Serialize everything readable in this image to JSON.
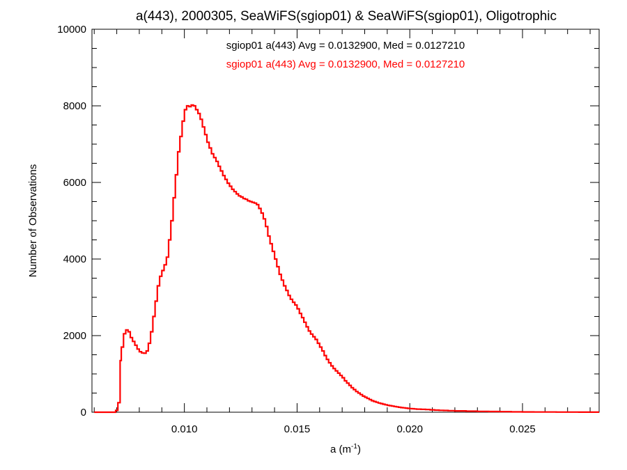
{
  "chart_data": {
    "type": "step-histogram",
    "title": "a(443), 2000305, SeaWiFS(sgiop01) & SeaWiFS(sgiop01), Oligotrophic",
    "xlabel_base": "a (m",
    "xlabel_sup": "-1",
    "xlabel_close": ")",
    "ylabel": "Number of Observations",
    "xlim": [
      0.0059,
      0.0284
    ],
    "ylim": [
      0,
      10000
    ],
    "grid": false,
    "xticks": [
      0.01,
      0.015,
      0.02,
      0.025
    ],
    "xtick_labels": [
      "0.010",
      "0.015",
      "0.020",
      "0.025"
    ],
    "yticks": [
      0,
      2000,
      4000,
      6000,
      8000,
      10000
    ],
    "ytick_labels": [
      "0",
      "2000",
      "4000",
      "6000",
      "8000",
      "10000"
    ],
    "annotations": [
      {
        "text": "sgiop01 a(443) Avg = 0.0132900, Med = 0.0127210",
        "color": "#000000"
      },
      {
        "text": "sgiop01 a(443) Avg = 0.0132900, Med = 0.0127210",
        "color": "#ff0000"
      }
    ],
    "series": [
      {
        "color": "#ff0000",
        "points": [
          [
            0.006,
            0
          ],
          [
            0.0068,
            0
          ],
          [
            0.00695,
            50
          ],
          [
            0.00705,
            250
          ],
          [
            0.00715,
            1350
          ],
          [
            0.0072,
            1700
          ],
          [
            0.0073,
            2050
          ],
          [
            0.0074,
            2150
          ],
          [
            0.0075,
            2100
          ],
          [
            0.0076,
            1950
          ],
          [
            0.0077,
            1850
          ],
          [
            0.0078,
            1750
          ],
          [
            0.0079,
            1650
          ],
          [
            0.008,
            1580
          ],
          [
            0.0081,
            1550
          ],
          [
            0.0082,
            1540
          ],
          [
            0.0083,
            1600
          ],
          [
            0.0084,
            1800
          ],
          [
            0.0085,
            2100
          ],
          [
            0.0086,
            2500
          ],
          [
            0.0087,
            2900
          ],
          [
            0.0088,
            3300
          ],
          [
            0.0089,
            3550
          ],
          [
            0.009,
            3700
          ],
          [
            0.0091,
            3850
          ],
          [
            0.0092,
            4050
          ],
          [
            0.0093,
            4500
          ],
          [
            0.0094,
            5000
          ],
          [
            0.0095,
            5600
          ],
          [
            0.0096,
            6200
          ],
          [
            0.0097,
            6800
          ],
          [
            0.0098,
            7200
          ],
          [
            0.0099,
            7600
          ],
          [
            0.01,
            7900
          ],
          [
            0.0101,
            8000
          ],
          [
            0.0102,
            7980
          ],
          [
            0.0103,
            8020
          ],
          [
            0.0104,
            8000
          ],
          [
            0.0105,
            7900
          ],
          [
            0.0106,
            7800
          ],
          [
            0.0107,
            7650
          ],
          [
            0.0108,
            7450
          ],
          [
            0.0109,
            7250
          ],
          [
            0.011,
            7050
          ],
          [
            0.0111,
            6900
          ],
          [
            0.0112,
            6750
          ],
          [
            0.0113,
            6650
          ],
          [
            0.0114,
            6550
          ],
          [
            0.0115,
            6420
          ],
          [
            0.0116,
            6300
          ],
          [
            0.0117,
            6180
          ],
          [
            0.0118,
            6080
          ],
          [
            0.0119,
            5980
          ],
          [
            0.012,
            5900
          ],
          [
            0.0121,
            5820
          ],
          [
            0.0122,
            5760
          ],
          [
            0.0123,
            5700
          ],
          [
            0.0124,
            5650
          ],
          [
            0.0125,
            5620
          ],
          [
            0.0126,
            5580
          ],
          [
            0.0127,
            5560
          ],
          [
            0.0128,
            5520
          ],
          [
            0.0129,
            5500
          ],
          [
            0.013,
            5480
          ],
          [
            0.0131,
            5460
          ],
          [
            0.0132,
            5420
          ],
          [
            0.0133,
            5320
          ],
          [
            0.0134,
            5200
          ],
          [
            0.0135,
            5050
          ],
          [
            0.0136,
            4850
          ],
          [
            0.0137,
            4600
          ],
          [
            0.0138,
            4400
          ],
          [
            0.0139,
            4200
          ],
          [
            0.014,
            4000
          ],
          [
            0.0141,
            3800
          ],
          [
            0.0142,
            3600
          ],
          [
            0.0143,
            3450
          ],
          [
            0.0144,
            3300
          ],
          [
            0.0145,
            3180
          ],
          [
            0.0146,
            3050
          ],
          [
            0.0147,
            2950
          ],
          [
            0.0148,
            2870
          ],
          [
            0.0149,
            2800
          ],
          [
            0.015,
            2700
          ],
          [
            0.0151,
            2580
          ],
          [
            0.0152,
            2470
          ],
          [
            0.0153,
            2350
          ],
          [
            0.0154,
            2230
          ],
          [
            0.0155,
            2120
          ],
          [
            0.0156,
            2040
          ],
          [
            0.0157,
            1970
          ],
          [
            0.0158,
            1900
          ],
          [
            0.0159,
            1800
          ],
          [
            0.016,
            1700
          ],
          [
            0.0161,
            1600
          ],
          [
            0.0162,
            1480
          ],
          [
            0.0163,
            1380
          ],
          [
            0.0164,
            1290
          ],
          [
            0.0165,
            1210
          ],
          [
            0.0166,
            1140
          ],
          [
            0.0167,
            1080
          ],
          [
            0.0168,
            1020
          ],
          [
            0.0169,
            960
          ],
          [
            0.017,
            900
          ],
          [
            0.0171,
            820
          ],
          [
            0.0172,
            760
          ],
          [
            0.0173,
            700
          ],
          [
            0.0174,
            640
          ],
          [
            0.0175,
            590
          ],
          [
            0.0176,
            540
          ],
          [
            0.0177,
            500
          ],
          [
            0.0178,
            460
          ],
          [
            0.0179,
            420
          ],
          [
            0.018,
            390
          ],
          [
            0.0181,
            360
          ],
          [
            0.0182,
            330
          ],
          [
            0.0183,
            300
          ],
          [
            0.0184,
            280
          ],
          [
            0.0185,
            260
          ],
          [
            0.0186,
            240
          ],
          [
            0.0187,
            225
          ],
          [
            0.0188,
            210
          ],
          [
            0.0189,
            195
          ],
          [
            0.019,
            180
          ],
          [
            0.0191,
            170
          ],
          [
            0.0192,
            160
          ],
          [
            0.0193,
            150
          ],
          [
            0.0194,
            140
          ],
          [
            0.0195,
            130
          ],
          [
            0.0196,
            120
          ],
          [
            0.0197,
            115
          ],
          [
            0.0198,
            108
          ],
          [
            0.0199,
            100
          ],
          [
            0.02,
            95
          ],
          [
            0.0201,
            90
          ],
          [
            0.0202,
            85
          ],
          [
            0.0203,
            80
          ],
          [
            0.0205,
            75
          ],
          [
            0.0207,
            70
          ],
          [
            0.0209,
            62
          ],
          [
            0.0211,
            55
          ],
          [
            0.0213,
            50
          ],
          [
            0.0215,
            45
          ],
          [
            0.0217,
            40
          ],
          [
            0.022,
            35
          ],
          [
            0.0225,
            28
          ],
          [
            0.023,
            22
          ],
          [
            0.0235,
            18
          ],
          [
            0.024,
            14
          ],
          [
            0.0245,
            10
          ],
          [
            0.025,
            8
          ],
          [
            0.0255,
            6
          ],
          [
            0.026,
            5
          ],
          [
            0.0265,
            4
          ],
          [
            0.027,
            3
          ],
          [
            0.0275,
            2
          ],
          [
            0.028,
            1
          ]
        ]
      }
    ]
  }
}
